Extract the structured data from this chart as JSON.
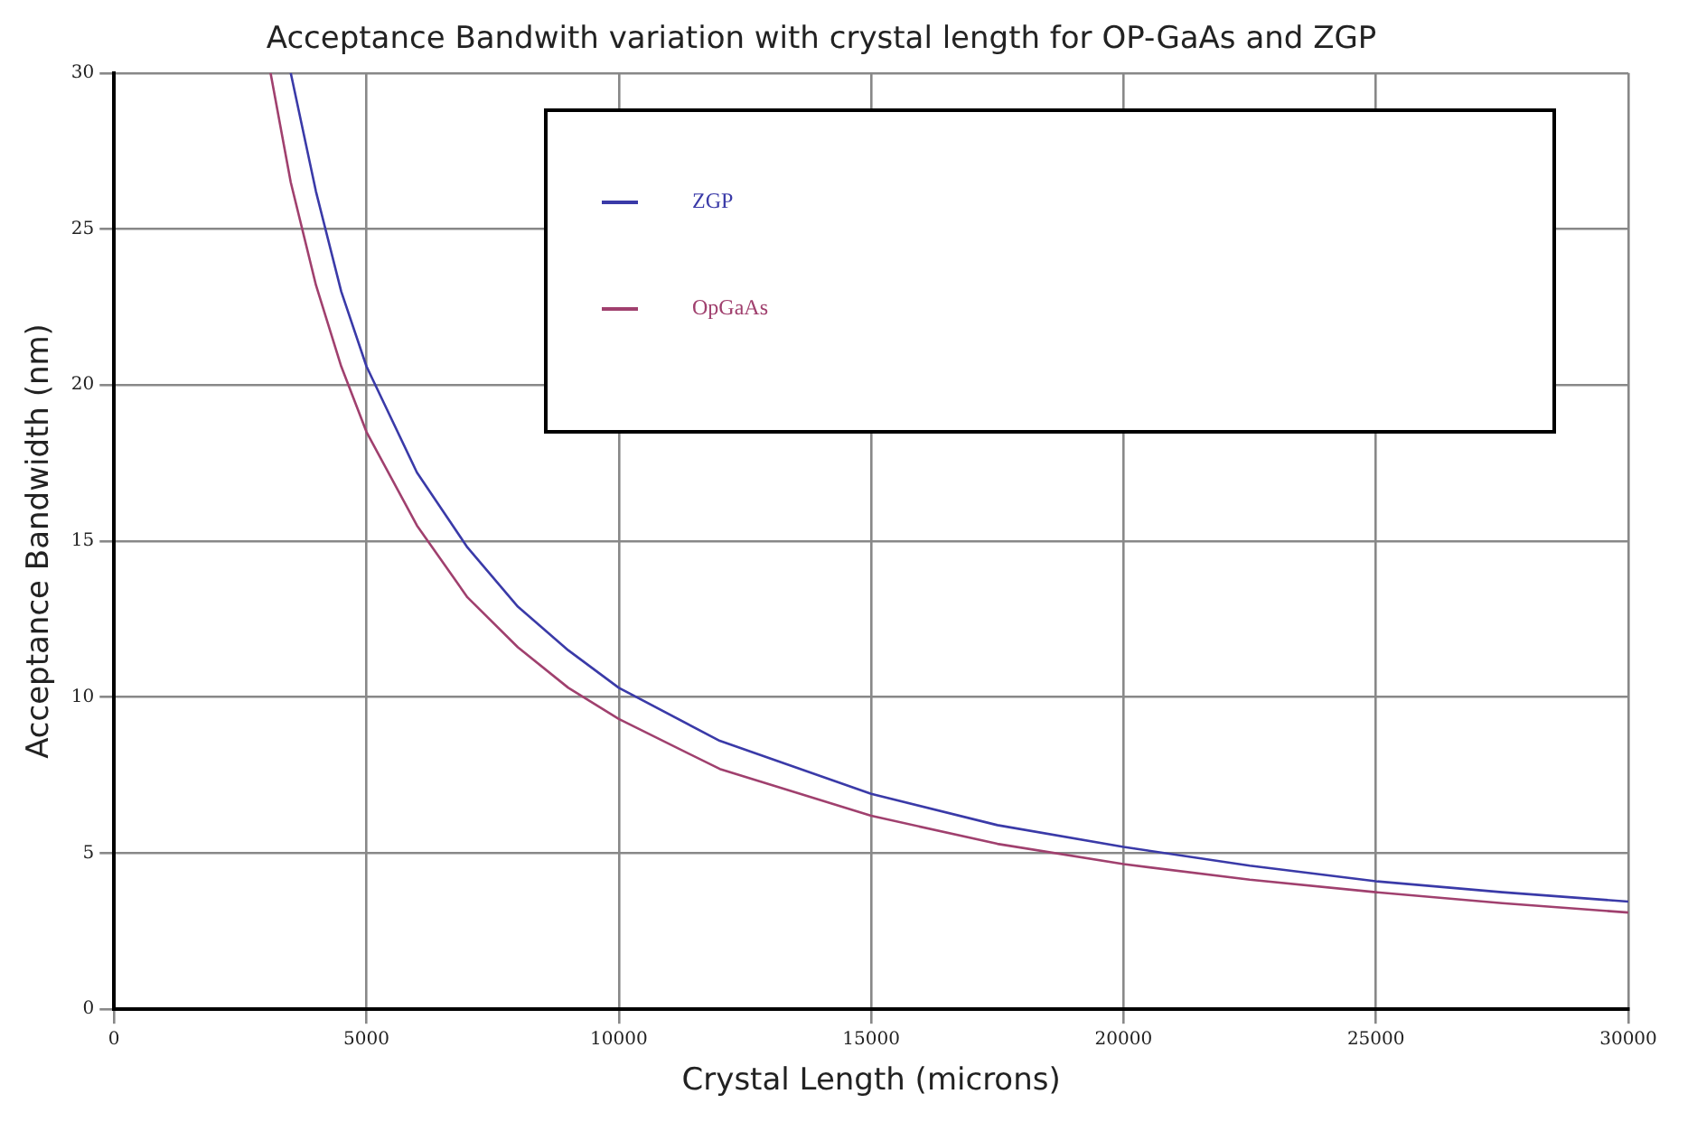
{
  "chart_data": {
    "type": "line",
    "title": "Acceptance Bandwith variation with crystal length for OP-GaAs and ZGP",
    "xlabel": "Crystal Length (microns)",
    "ylabel": "Acceptance Bandwidth (nm)",
    "xlim": [
      0,
      30000
    ],
    "xticks": [
      0,
      5000,
      10000,
      15000,
      20000,
      25000,
      30000
    ],
    "ylim": [
      0,
      30
    ],
    "yticks": [
      0,
      5,
      10,
      15,
      20,
      25,
      30
    ],
    "grid": true,
    "legend": "top",
    "marker": "none",
    "line_style": "solid",
    "series": [
      {
        "name": "ZGP",
        "color": "#3a3aa8",
        "x": [
          3500,
          4000,
          4500,
          5000,
          6000,
          7000,
          8000,
          9000,
          10000,
          12000,
          15000,
          17500,
          20000,
          22500,
          25000,
          27500,
          30000
        ],
        "values": [
          30,
          26.2,
          23,
          20.6,
          17.2,
          14.8,
          12.9,
          11.5,
          10.3,
          8.6,
          6.9,
          5.9,
          5.2,
          4.6,
          4.1,
          3.75,
          3.45
        ]
      },
      {
        "name": "OpGaAs",
        "color": "#a0406e",
        "x": [
          3100,
          3500,
          4000,
          4500,
          5000,
          6000,
          7000,
          8000,
          9000,
          10000,
          12000,
          15000,
          17500,
          20000,
          22500,
          25000,
          27500,
          30000
        ],
        "values": [
          30,
          26.5,
          23.2,
          20.6,
          18.5,
          15.5,
          13.2,
          11.6,
          10.3,
          9.3,
          7.7,
          6.2,
          5.3,
          4.65,
          4.15,
          3.75,
          3.4,
          3.1
        ]
      }
    ]
  }
}
